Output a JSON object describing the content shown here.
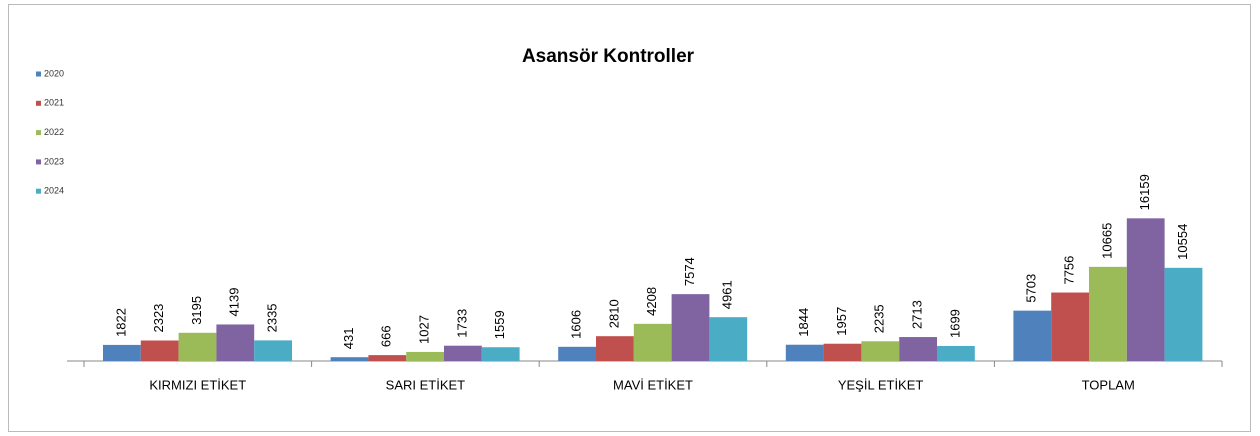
{
  "chart_data": {
    "type": "bar",
    "title": "Asansör Kontroller",
    "categories": [
      "KIRMIZI ETİKET",
      "SARI ETİKET",
      "MAVİ ETİKET",
      "YEŞİL ETİKET",
      "TOPLAM"
    ],
    "series": [
      {
        "name": "2020",
        "color": "#4f81bd",
        "values": [
          1822,
          431,
          1606,
          1844,
          5703
        ]
      },
      {
        "name": "2021",
        "color": "#c0504d",
        "values": [
          2323,
          666,
          2810,
          1957,
          7756
        ]
      },
      {
        "name": "2022",
        "color": "#9bbb59",
        "values": [
          3195,
          1027,
          4208,
          2235,
          10665
        ]
      },
      {
        "name": "2023",
        "color": "#8064a2",
        "values": [
          4139,
          1733,
          7574,
          2713,
          16159
        ]
      },
      {
        "name": "2024",
        "color": "#4bacc6",
        "values": [
          2335,
          1559,
          4961,
          1699,
          10554
        ]
      }
    ],
    "ylim": [
      0,
      35000
    ],
    "legend": "left"
  }
}
